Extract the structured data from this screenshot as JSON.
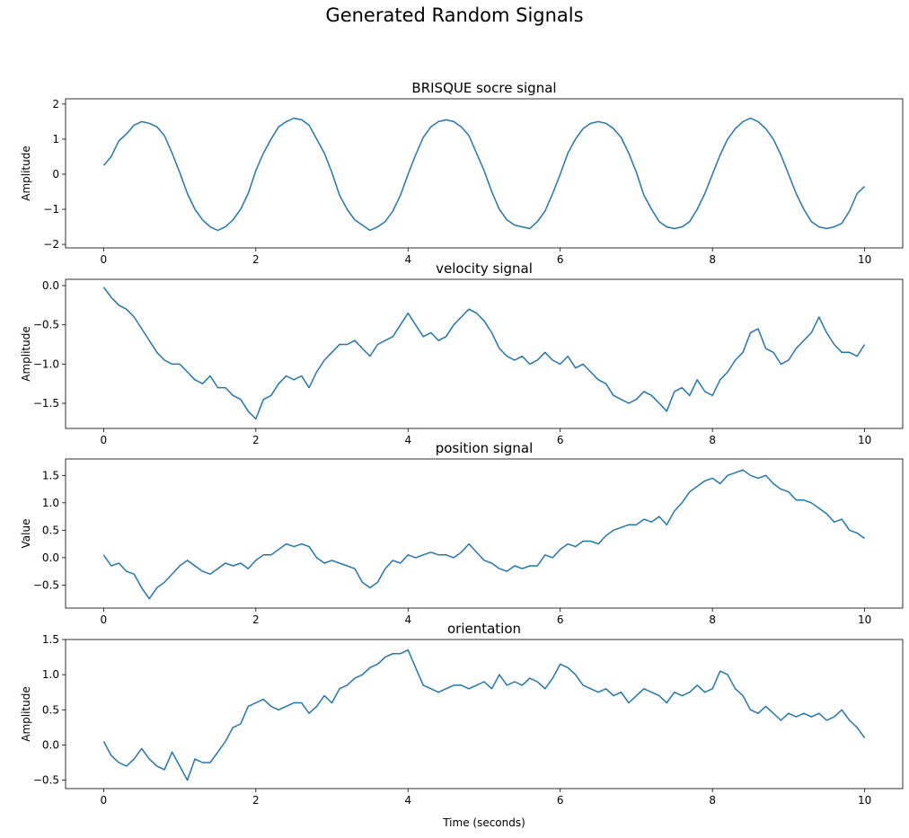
{
  "figure": {
    "title": "Generated Random Signals",
    "line_color": "#1f77b4"
  },
  "chart_data": [
    {
      "type": "line",
      "title": "BRISQUE socre signal",
      "xlabel": "",
      "ylabel": "Amplitude",
      "xlim": [
        -0.5,
        10.5
      ],
      "ylim": [
        -2.1,
        2.15
      ],
      "xticks": [
        0,
        2,
        4,
        6,
        8,
        10
      ],
      "yticks": [
        -2,
        -1,
        0,
        1,
        2
      ],
      "grid": false,
      "x": [
        0,
        0.1,
        0.2,
        0.3,
        0.4,
        0.5,
        0.6,
        0.7,
        0.8,
        0.9,
        1.0,
        1.1,
        1.2,
        1.3,
        1.4,
        1.5,
        1.6,
        1.7,
        1.8,
        1.9,
        2.0,
        2.1,
        2.2,
        2.3,
        2.4,
        2.5,
        2.6,
        2.7,
        2.8,
        2.9,
        3.0,
        3.1,
        3.2,
        3.3,
        3.4,
        3.5,
        3.6,
        3.7,
        3.8,
        3.9,
        4.0,
        4.1,
        4.2,
        4.3,
        4.4,
        4.5,
        4.6,
        4.7,
        4.8,
        4.9,
        5.0,
        5.1,
        5.2,
        5.3,
        5.4,
        5.5,
        5.6,
        5.7,
        5.8,
        5.9,
        6.0,
        6.1,
        6.2,
        6.3,
        6.4,
        6.5,
        6.6,
        6.7,
        6.8,
        6.9,
        7.0,
        7.1,
        7.2,
        7.3,
        7.4,
        7.5,
        7.6,
        7.7,
        7.8,
        7.9,
        8.0,
        8.1,
        8.2,
        8.3,
        8.4,
        8.5,
        8.6,
        8.7,
        8.8,
        8.9,
        9.0,
        9.1,
        9.2,
        9.3,
        9.4,
        9.5,
        9.6,
        9.7,
        9.8,
        9.9,
        10.0
      ],
      "series": [
        {
          "values": [
            0.25,
            0.5,
            0.95,
            1.15,
            1.4,
            1.5,
            1.45,
            1.35,
            1.1,
            0.6,
            0.05,
            -0.55,
            -1.0,
            -1.3,
            -1.5,
            -1.6,
            -1.5,
            -1.3,
            -1.0,
            -0.55,
            0.1,
            0.6,
            1.0,
            1.35,
            1.5,
            1.6,
            1.55,
            1.4,
            1.0,
            0.6,
            0.05,
            -0.6,
            -1.0,
            -1.3,
            -1.45,
            -1.6,
            -1.5,
            -1.35,
            -1.05,
            -0.6,
            0.0,
            0.55,
            1.05,
            1.35,
            1.5,
            1.55,
            1.5,
            1.35,
            1.1,
            0.6,
            0.1,
            -0.5,
            -1.0,
            -1.3,
            -1.45,
            -1.5,
            -1.55,
            -1.35,
            -1.05,
            -0.55,
            0.0,
            0.6,
            1.0,
            1.3,
            1.45,
            1.5,
            1.45,
            1.3,
            1.05,
            0.6,
            0.05,
            -0.6,
            -1.0,
            -1.35,
            -1.5,
            -1.55,
            -1.5,
            -1.35,
            -1.0,
            -0.55,
            0.0,
            0.55,
            1.0,
            1.3,
            1.5,
            1.6,
            1.5,
            1.3,
            1.0,
            0.55,
            0.0,
            -0.55,
            -1.0,
            -1.35,
            -1.5,
            -1.55,
            -1.5,
            -1.4,
            -1.05,
            -0.55,
            -0.35
          ]
        }
      ]
    },
    {
      "type": "line",
      "title": "velocity signal",
      "xlabel": "",
      "ylabel": "Amplitude",
      "xlim": [
        -0.5,
        10.5
      ],
      "ylim": [
        -1.82,
        0.08
      ],
      "xticks": [
        0,
        2,
        4,
        6,
        8,
        10
      ],
      "yticks": [
        -1.5,
        -1.0,
        -0.5,
        0.0
      ],
      "grid": false,
      "x": [
        0,
        0.1,
        0.2,
        0.3,
        0.4,
        0.5,
        0.6,
        0.7,
        0.8,
        0.9,
        1.0,
        1.1,
        1.2,
        1.3,
        1.4,
        1.5,
        1.6,
        1.7,
        1.8,
        1.9,
        2.0,
        2.1,
        2.2,
        2.3,
        2.4,
        2.5,
        2.6,
        2.7,
        2.8,
        2.9,
        3.0,
        3.1,
        3.2,
        3.3,
        3.4,
        3.5,
        3.6,
        3.7,
        3.8,
        3.9,
        4.0,
        4.1,
        4.2,
        4.3,
        4.4,
        4.5,
        4.6,
        4.7,
        4.8,
        4.9,
        5.0,
        5.1,
        5.2,
        5.3,
        5.4,
        5.5,
        5.6,
        5.7,
        5.8,
        5.9,
        6.0,
        6.1,
        6.2,
        6.3,
        6.4,
        6.5,
        6.6,
        6.7,
        6.8,
        6.9,
        7.0,
        7.1,
        7.2,
        7.3,
        7.4,
        7.5,
        7.6,
        7.7,
        7.8,
        7.9,
        8.0,
        8.1,
        8.2,
        8.3,
        8.4,
        8.5,
        8.6,
        8.7,
        8.8,
        8.9,
        9.0,
        9.1,
        9.2,
        9.3,
        9.4,
        9.5,
        9.6,
        9.7,
        9.8,
        9.9,
        10.0
      ],
      "series": [
        {
          "values": [
            -0.02,
            -0.15,
            -0.25,
            -0.3,
            -0.4,
            -0.55,
            -0.7,
            -0.85,
            -0.95,
            -1.0,
            -1.0,
            -1.1,
            -1.2,
            -1.25,
            -1.15,
            -1.3,
            -1.3,
            -1.4,
            -1.45,
            -1.6,
            -1.7,
            -1.45,
            -1.4,
            -1.25,
            -1.15,
            -1.2,
            -1.15,
            -1.3,
            -1.1,
            -0.95,
            -0.85,
            -0.75,
            -0.75,
            -0.7,
            -0.8,
            -0.9,
            -0.75,
            -0.7,
            -0.65,
            -0.5,
            -0.35,
            -0.5,
            -0.65,
            -0.6,
            -0.7,
            -0.65,
            -0.5,
            -0.4,
            -0.3,
            -0.35,
            -0.45,
            -0.6,
            -0.8,
            -0.9,
            -0.95,
            -0.9,
            -1.0,
            -0.95,
            -0.85,
            -0.95,
            -1.0,
            -0.9,
            -1.05,
            -1.0,
            -1.1,
            -1.2,
            -1.25,
            -1.4,
            -1.45,
            -1.5,
            -1.45,
            -1.35,
            -1.4,
            -1.5,
            -1.6,
            -1.35,
            -1.3,
            -1.4,
            -1.2,
            -1.35,
            -1.4,
            -1.2,
            -1.1,
            -0.95,
            -0.85,
            -0.6,
            -0.55,
            -0.8,
            -0.85,
            -1.0,
            -0.95,
            -0.8,
            -0.7,
            -0.6,
            -0.4,
            -0.6,
            -0.75,
            -0.85,
            -0.85,
            -0.9,
            -0.75
          ]
        }
      ]
    },
    {
      "type": "line",
      "title": "position signal",
      "xlabel": "",
      "ylabel": "Value",
      "xlim": [
        -0.5,
        10.5
      ],
      "ylim": [
        -0.92,
        1.8
      ],
      "xticks": [
        0,
        2,
        4,
        6,
        8,
        10
      ],
      "yticks": [
        -0.5,
        0.0,
        0.5,
        1.0,
        1.5
      ],
      "grid": false,
      "x": [
        0,
        0.1,
        0.2,
        0.3,
        0.4,
        0.5,
        0.6,
        0.7,
        0.8,
        0.9,
        1.0,
        1.1,
        1.2,
        1.3,
        1.4,
        1.5,
        1.6,
        1.7,
        1.8,
        1.9,
        2.0,
        2.1,
        2.2,
        2.3,
        2.4,
        2.5,
        2.6,
        2.7,
        2.8,
        2.9,
        3.0,
        3.1,
        3.2,
        3.3,
        3.4,
        3.5,
        3.6,
        3.7,
        3.8,
        3.9,
        4.0,
        4.1,
        4.2,
        4.3,
        4.4,
        4.5,
        4.6,
        4.7,
        4.8,
        4.9,
        5.0,
        5.1,
        5.2,
        5.3,
        5.4,
        5.5,
        5.6,
        5.7,
        5.8,
        5.9,
        6.0,
        6.1,
        6.2,
        6.3,
        6.4,
        6.5,
        6.6,
        6.7,
        6.8,
        6.9,
        7.0,
        7.1,
        7.2,
        7.3,
        7.4,
        7.5,
        7.6,
        7.7,
        7.8,
        7.9,
        8.0,
        8.1,
        8.2,
        8.3,
        8.4,
        8.5,
        8.6,
        8.7,
        8.8,
        8.9,
        9.0,
        9.1,
        9.2,
        9.3,
        9.4,
        9.5,
        9.6,
        9.7,
        9.8,
        9.9,
        10.0
      ],
      "series": [
        {
          "values": [
            0.05,
            -0.15,
            -0.1,
            -0.25,
            -0.3,
            -0.55,
            -0.75,
            -0.55,
            -0.45,
            -0.3,
            -0.15,
            -0.05,
            -0.15,
            -0.25,
            -0.3,
            -0.2,
            -0.1,
            -0.15,
            -0.1,
            -0.2,
            -0.05,
            0.05,
            0.05,
            0.15,
            0.25,
            0.2,
            0.25,
            0.2,
            0.0,
            -0.1,
            -0.05,
            -0.1,
            -0.15,
            -0.2,
            -0.45,
            -0.55,
            -0.45,
            -0.2,
            -0.05,
            -0.1,
            0.05,
            0.0,
            0.05,
            0.1,
            0.05,
            0.05,
            0.0,
            0.1,
            0.25,
            0.1,
            -0.05,
            -0.1,
            -0.2,
            -0.25,
            -0.15,
            -0.2,
            -0.15,
            -0.15,
            0.05,
            0.0,
            0.15,
            0.25,
            0.2,
            0.3,
            0.3,
            0.25,
            0.4,
            0.5,
            0.55,
            0.6,
            0.6,
            0.7,
            0.65,
            0.75,
            0.6,
            0.85,
            1.0,
            1.2,
            1.3,
            1.4,
            1.45,
            1.35,
            1.5,
            1.55,
            1.6,
            1.5,
            1.45,
            1.5,
            1.35,
            1.25,
            1.2,
            1.05,
            1.05,
            1.0,
            0.9,
            0.8,
            0.65,
            0.7,
            0.5,
            0.45,
            0.35
          ]
        }
      ]
    },
    {
      "type": "line",
      "title": "orientation",
      "xlabel": "Time (seconds)",
      "ylabel": "Amplitude",
      "xlim": [
        -0.5,
        10.5
      ],
      "ylim": [
        -0.62,
        1.5
      ],
      "xticks": [
        0,
        2,
        4,
        6,
        8,
        10
      ],
      "yticks": [
        -0.5,
        0.0,
        0.5,
        1.0,
        1.5
      ],
      "grid": false,
      "x": [
        0,
        0.1,
        0.2,
        0.3,
        0.4,
        0.5,
        0.6,
        0.7,
        0.8,
        0.9,
        1.0,
        1.1,
        1.2,
        1.3,
        1.4,
        1.5,
        1.6,
        1.7,
        1.8,
        1.9,
        2.0,
        2.1,
        2.2,
        2.3,
        2.4,
        2.5,
        2.6,
        2.7,
        2.8,
        2.9,
        3.0,
        3.1,
        3.2,
        3.3,
        3.4,
        3.5,
        3.6,
        3.7,
        3.8,
        3.9,
        4.0,
        4.1,
        4.2,
        4.3,
        4.4,
        4.5,
        4.6,
        4.7,
        4.8,
        4.9,
        5.0,
        5.1,
        5.2,
        5.3,
        5.4,
        5.5,
        5.6,
        5.7,
        5.8,
        5.9,
        6.0,
        6.1,
        6.2,
        6.3,
        6.4,
        6.5,
        6.6,
        6.7,
        6.8,
        6.9,
        7.0,
        7.1,
        7.2,
        7.3,
        7.4,
        7.5,
        7.6,
        7.7,
        7.8,
        7.9,
        8.0,
        8.1,
        8.2,
        8.3,
        8.4,
        8.5,
        8.6,
        8.7,
        8.8,
        8.9,
        9.0,
        9.1,
        9.2,
        9.3,
        9.4,
        9.5,
        9.6,
        9.7,
        9.8,
        9.9,
        10.0
      ],
      "series": [
        {
          "values": [
            0.05,
            -0.15,
            -0.25,
            -0.3,
            -0.2,
            -0.05,
            -0.2,
            -0.3,
            -0.35,
            -0.1,
            -0.3,
            -0.5,
            -0.2,
            -0.25,
            -0.25,
            -0.1,
            0.05,
            0.25,
            0.3,
            0.55,
            0.6,
            0.65,
            0.55,
            0.5,
            0.55,
            0.6,
            0.6,
            0.45,
            0.55,
            0.7,
            0.6,
            0.8,
            0.85,
            0.95,
            1.0,
            1.1,
            1.15,
            1.25,
            1.3,
            1.3,
            1.35,
            1.1,
            0.85,
            0.8,
            0.75,
            0.8,
            0.85,
            0.85,
            0.8,
            0.85,
            0.9,
            0.8,
            1.0,
            0.85,
            0.9,
            0.85,
            0.95,
            0.9,
            0.8,
            0.95,
            1.15,
            1.1,
            1.0,
            0.85,
            0.8,
            0.75,
            0.8,
            0.7,
            0.75,
            0.6,
            0.7,
            0.8,
            0.75,
            0.7,
            0.6,
            0.75,
            0.7,
            0.75,
            0.85,
            0.75,
            0.8,
            1.05,
            1.0,
            0.8,
            0.7,
            0.5,
            0.45,
            0.55,
            0.45,
            0.35,
            0.45,
            0.4,
            0.45,
            0.4,
            0.45,
            0.35,
            0.4,
            0.5,
            0.35,
            0.25,
            0.1
          ]
        }
      ]
    }
  ]
}
